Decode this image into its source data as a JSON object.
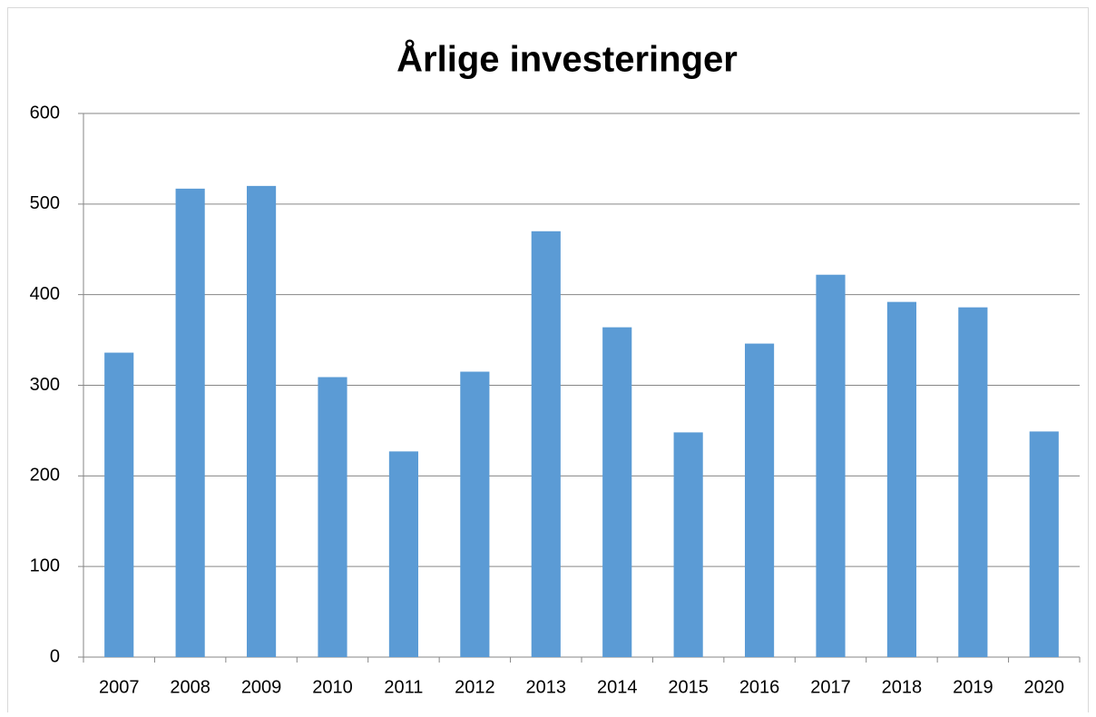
{
  "chart_data": {
    "type": "bar",
    "title": "Årlige investeringer",
    "categories": [
      "2007",
      "2008",
      "2009",
      "2010",
      "2011",
      "2012",
      "2013",
      "2014",
      "2015",
      "2016",
      "2017",
      "2018",
      "2019",
      "2020"
    ],
    "values": [
      336,
      517,
      520,
      309,
      227,
      315,
      470,
      364,
      248,
      346,
      422,
      392,
      386,
      249
    ],
    "color": "#5b9bd5",
    "ylim": [
      0,
      600
    ],
    "yticks": [
      0,
      100,
      200,
      300,
      400,
      500,
      600
    ],
    "grid": true
  }
}
